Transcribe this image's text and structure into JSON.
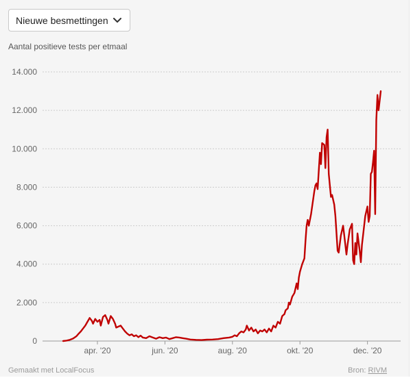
{
  "selector": {
    "selected": "Nieuwe besmettingen",
    "icon": "chevron-down-icon"
  },
  "subtitle": "Aantal positieve tests per etmaal",
  "colors": {
    "line": "#c00000",
    "grid": "#cccccc",
    "axis_text": "#666666",
    "background": "#f5f5f5"
  },
  "footer": {
    "made_with": "Gemaakt met LocalFocus",
    "source_label": "Bron:",
    "source_name": "RIVM"
  },
  "chart_data": {
    "type": "line",
    "title": "",
    "ylabel": "Aantal positieve tests per etmaal",
    "xlabel": "",
    "ylim": [
      0,
      14000
    ],
    "xlim_days": [
      0,
      299
    ],
    "grid": true,
    "y_ticks": [
      0,
      2000,
      4000,
      6000,
      8000,
      10000,
      12000,
      14000
    ],
    "y_tick_labels": [
      "0",
      "2.000",
      "4.000",
      "6.000",
      "8.000",
      "10.000",
      "12.000",
      "14.000"
    ],
    "x_ticks": [
      {
        "label": "apr. '20",
        "day": 31
      },
      {
        "label": "jun. '20",
        "day": 92
      },
      {
        "label": "aug. '20",
        "day": 153
      },
      {
        "label": "okt. '20",
        "day": 214
      },
      {
        "label": "dec. '20",
        "day": 275
      }
    ],
    "x_unit": "days since 2020-03-01",
    "series": [
      {
        "name": "Nieuwe besmettingen",
        "points": [
          [
            0,
            0
          ],
          [
            3,
            20
          ],
          [
            6,
            60
          ],
          [
            9,
            130
          ],
          [
            12,
            250
          ],
          [
            14,
            380
          ],
          [
            16,
            500
          ],
          [
            18,
            650
          ],
          [
            20,
            800
          ],
          [
            22,
            1000
          ],
          [
            24,
            1200
          ],
          [
            26,
            1050
          ],
          [
            27,
            900
          ],
          [
            29,
            1150
          ],
          [
            31,
            1000
          ],
          [
            33,
            1100
          ],
          [
            34,
            800
          ],
          [
            36,
            1250
          ],
          [
            38,
            1350
          ],
          [
            40,
            1100
          ],
          [
            41,
            900
          ],
          [
            43,
            1300
          ],
          [
            45,
            1150
          ],
          [
            47,
            900
          ],
          [
            48,
            700
          ],
          [
            50,
            750
          ],
          [
            52,
            800
          ],
          [
            54,
            650
          ],
          [
            56,
            500
          ],
          [
            58,
            380
          ],
          [
            60,
            300
          ],
          [
            62,
            350
          ],
          [
            64,
            250
          ],
          [
            66,
            300
          ],
          [
            68,
            200
          ],
          [
            70,
            280
          ],
          [
            72,
            180
          ],
          [
            75,
            150
          ],
          [
            78,
            250
          ],
          [
            81,
            180
          ],
          [
            84,
            120
          ],
          [
            87,
            200
          ],
          [
            90,
            150
          ],
          [
            93,
            180
          ],
          [
            96,
            100
          ],
          [
            99,
            150
          ],
          [
            102,
            200
          ],
          [
            105,
            180
          ],
          [
            108,
            150
          ],
          [
            111,
            120
          ],
          [
            115,
            80
          ],
          [
            120,
            60
          ],
          [
            125,
            50
          ],
          [
            130,
            70
          ],
          [
            135,
            80
          ],
          [
            140,
            100
          ],
          [
            145,
            150
          ],
          [
            150,
            180
          ],
          [
            153,
            220
          ],
          [
            155,
            300
          ],
          [
            157,
            250
          ],
          [
            159,
            400
          ],
          [
            161,
            500
          ],
          [
            163,
            450
          ],
          [
            165,
            600
          ],
          [
            166,
            800
          ],
          [
            168,
            550
          ],
          [
            170,
            700
          ],
          [
            172,
            500
          ],
          [
            174,
            600
          ],
          [
            176,
            400
          ],
          [
            178,
            550
          ],
          [
            180,
            500
          ],
          [
            182,
            600
          ],
          [
            184,
            450
          ],
          [
            186,
            650
          ],
          [
            188,
            500
          ],
          [
            190,
            800
          ],
          [
            192,
            700
          ],
          [
            194,
            1000
          ],
          [
            196,
            900
          ],
          [
            198,
            1300
          ],
          [
            200,
            1400
          ],
          [
            201,
            1600
          ],
          [
            203,
            1700
          ],
          [
            204,
            2000
          ],
          [
            205,
            1900
          ],
          [
            207,
            2300
          ],
          [
            209,
            2500
          ],
          [
            211,
            3000
          ],
          [
            212,
            2700
          ],
          [
            213,
            3300
          ],
          [
            214,
            3600
          ],
          [
            216,
            4000
          ],
          [
            218,
            4300
          ],
          [
            219,
            5200
          ],
          [
            220,
            6000
          ],
          [
            221,
            6300
          ],
          [
            222,
            6000
          ],
          [
            224,
            6600
          ],
          [
            225,
            7000
          ],
          [
            227,
            7800
          ],
          [
            228,
            8100
          ],
          [
            229,
            8200
          ],
          [
            230,
            7900
          ],
          [
            232,
            9800
          ],
          [
            233,
            9200
          ],
          [
            234,
            10300
          ],
          [
            236,
            10200
          ],
          [
            237,
            9000
          ],
          [
            238,
            10600
          ],
          [
            239,
            11000
          ],
          [
            240,
            8700
          ],
          [
            242,
            7500
          ],
          [
            243,
            7600
          ],
          [
            245,
            7100
          ],
          [
            246,
            6500
          ],
          [
            248,
            4700
          ],
          [
            249,
            4600
          ],
          [
            251,
            5500
          ],
          [
            253,
            6000
          ],
          [
            254,
            5500
          ],
          [
            256,
            4500
          ],
          [
            257,
            5000
          ],
          [
            259,
            5800
          ],
          [
            261,
            6100
          ],
          [
            262,
            4200
          ],
          [
            263,
            4000
          ],
          [
            264,
            5100
          ],
          [
            265,
            4500
          ],
          [
            266,
            5600
          ],
          [
            268,
            4700
          ],
          [
            269,
            4100
          ],
          [
            270,
            5000
          ],
          [
            271,
            5500
          ],
          [
            273,
            6500
          ],
          [
            275,
            7000
          ],
          [
            276,
            6200
          ],
          [
            277,
            6500
          ],
          [
            278,
            8700
          ],
          [
            279,
            8800
          ],
          [
            280,
            9300
          ],
          [
            281,
            9900
          ],
          [
            282,
            6600
          ],
          [
            283,
            11500
          ],
          [
            284,
            12800
          ],
          [
            285,
            12000
          ],
          [
            286,
            12500
          ],
          [
            287,
            13000
          ]
        ]
      }
    ]
  }
}
